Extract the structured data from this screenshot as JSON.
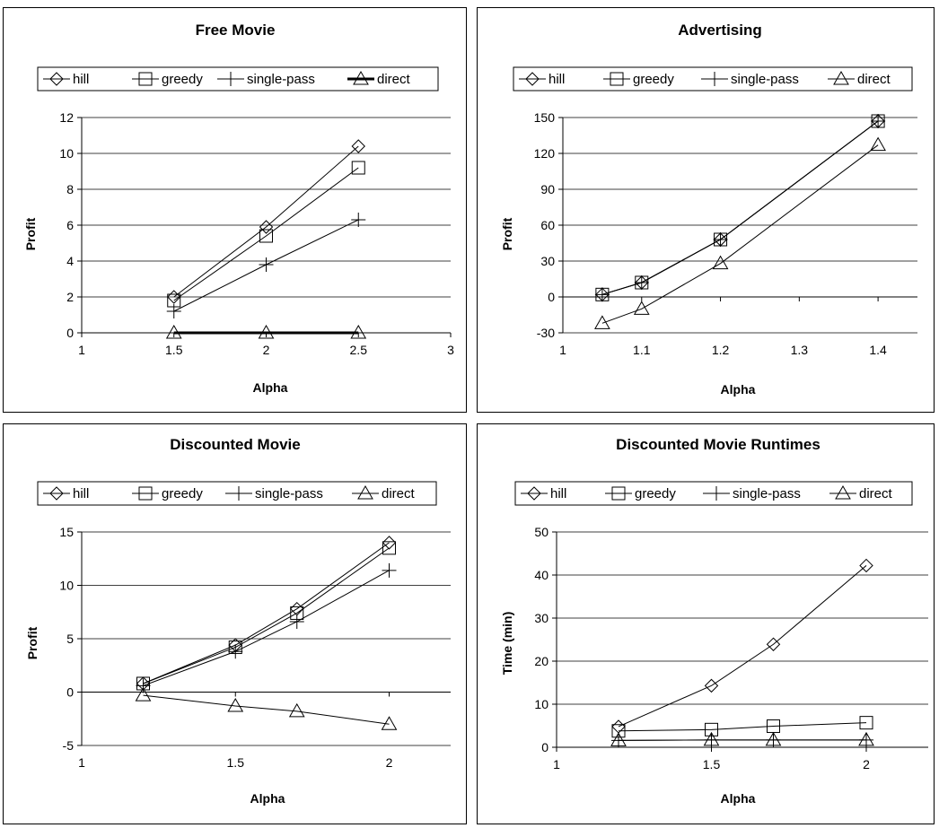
{
  "chart_data": [
    {
      "type": "line",
      "title": "Free Movie",
      "xlabel": "Alpha",
      "ylabel": "Profit",
      "xlim": [
        1,
        3
      ],
      "ylim": [
        0,
        12
      ],
      "xticks": [
        1,
        1.5,
        2,
        2.5,
        3
      ],
      "yticks": [
        0,
        2,
        4,
        6,
        8,
        10,
        12
      ],
      "xtick_labels": [
        "1",
        "1.5",
        "2",
        "2.5",
        "3"
      ],
      "ytick_labels": [
        "0",
        "2",
        "4",
        "6",
        "8",
        "10",
        "12"
      ],
      "grid": "horizontal",
      "legend": "top",
      "series": [
        {
          "name": "hill",
          "marker": "diamond",
          "x": [
            1.5,
            2,
            2.5
          ],
          "y": [
            2.0,
            5.9,
            10.4
          ]
        },
        {
          "name": "greedy",
          "marker": "square",
          "x": [
            1.5,
            2,
            2.5
          ],
          "y": [
            1.8,
            5.4,
            9.2
          ]
        },
        {
          "name": "single-pass",
          "marker": "plus",
          "x": [
            1.5,
            2,
            2.5
          ],
          "y": [
            1.2,
            3.8,
            6.3
          ]
        },
        {
          "name": "direct",
          "marker": "triangle",
          "x": [
            1.5,
            2,
            2.5
          ],
          "y": [
            0.0,
            0.0,
            0.0
          ]
        }
      ]
    },
    {
      "type": "line",
      "title": "Advertising",
      "xlabel": "Alpha",
      "ylabel": "Profit",
      "xlim": [
        1,
        1.45
      ],
      "ylim": [
        -30,
        150
      ],
      "xticks": [
        1,
        1.1,
        1.2,
        1.3,
        1.4
      ],
      "yticks": [
        -30,
        0,
        30,
        60,
        90,
        120,
        150
      ],
      "xtick_labels": [
        "1",
        "1.1",
        "1.2",
        "1.3",
        "1.4"
      ],
      "ytick_labels": [
        "-30",
        "0",
        "30",
        "60",
        "90",
        "120",
        "150"
      ],
      "grid": "horizontal",
      "legend": "top",
      "series": [
        {
          "name": "hill",
          "marker": "diamond",
          "x": [
            1.05,
            1.1,
            1.2,
            1.4
          ],
          "y": [
            2,
            12,
            48,
            147
          ]
        },
        {
          "name": "greedy",
          "marker": "square",
          "x": [
            1.05,
            1.1,
            1.2,
            1.4
          ],
          "y": [
            2,
            12,
            48,
            147
          ]
        },
        {
          "name": "single-pass",
          "marker": "plus",
          "x": [
            1.05,
            1.1,
            1.2,
            1.4
          ],
          "y": [
            2,
            12,
            48,
            147
          ]
        },
        {
          "name": "direct",
          "marker": "triangle",
          "x": [
            1.05,
            1.1,
            1.2,
            1.4
          ],
          "y": [
            -22,
            -10,
            28,
            127
          ]
        }
      ]
    },
    {
      "type": "line",
      "title": "Discounted Movie",
      "xlabel": "Alpha",
      "ylabel": "Profit",
      "xlim": [
        1,
        2.2
      ],
      "ylim": [
        -5,
        15
      ],
      "xticks": [
        1,
        1.5,
        2
      ],
      "yticks": [
        -5,
        0,
        5,
        10,
        15
      ],
      "xtick_labels": [
        "1",
        "1.5",
        "2"
      ],
      "ytick_labels": [
        "-5",
        "0",
        "5",
        "10",
        "15"
      ],
      "grid": "horizontal",
      "legend": "top",
      "series": [
        {
          "name": "hill",
          "marker": "diamond",
          "x": [
            1.2,
            1.5,
            1.7,
            2
          ],
          "y": [
            0.8,
            4.4,
            7.8,
            14.0
          ]
        },
        {
          "name": "greedy",
          "marker": "square",
          "x": [
            1.2,
            1.5,
            1.7,
            2
          ],
          "y": [
            0.8,
            4.2,
            7.4,
            13.5
          ]
        },
        {
          "name": "single-pass",
          "marker": "plus",
          "x": [
            1.2,
            1.5,
            1.7,
            2
          ],
          "y": [
            0.6,
            3.8,
            6.6,
            11.4
          ]
        },
        {
          "name": "direct",
          "marker": "triangle",
          "x": [
            1.2,
            1.5,
            1.7,
            2
          ],
          "y": [
            -0.3,
            -1.3,
            -1.8,
            -3.0
          ]
        }
      ]
    },
    {
      "type": "line",
      "title": "Discounted Movie Runtimes",
      "xlabel": "Alpha",
      "ylabel": "Time (min)",
      "xlim": [
        1,
        2.2
      ],
      "ylim": [
        0,
        50
      ],
      "xticks": [
        1,
        1.5,
        2
      ],
      "yticks": [
        0,
        10,
        20,
        30,
        40,
        50
      ],
      "xtick_labels": [
        "1",
        "1.5",
        "2"
      ],
      "ytick_labels": [
        "0",
        "10",
        "20",
        "30",
        "40",
        "50"
      ],
      "grid": "horizontal",
      "legend": "top",
      "series": [
        {
          "name": "hill",
          "marker": "diamond",
          "x": [
            1.2,
            1.5,
            1.7,
            2
          ],
          "y": [
            4.8,
            14.3,
            23.9,
            42.2
          ]
        },
        {
          "name": "greedy",
          "marker": "square",
          "x": [
            1.2,
            1.5,
            1.7,
            2
          ],
          "y": [
            3.8,
            4.1,
            4.9,
            5.7
          ]
        },
        {
          "name": "single-pass",
          "marker": "plus",
          "x": [
            1.2,
            1.5,
            1.7,
            2
          ],
          "y": [
            1.6,
            1.7,
            1.7,
            1.7
          ]
        },
        {
          "name": "direct",
          "marker": "triangle",
          "x": [
            1.2,
            1.5,
            1.7,
            2
          ],
          "y": [
            1.6,
            1.7,
            1.7,
            1.7
          ]
        }
      ]
    }
  ]
}
